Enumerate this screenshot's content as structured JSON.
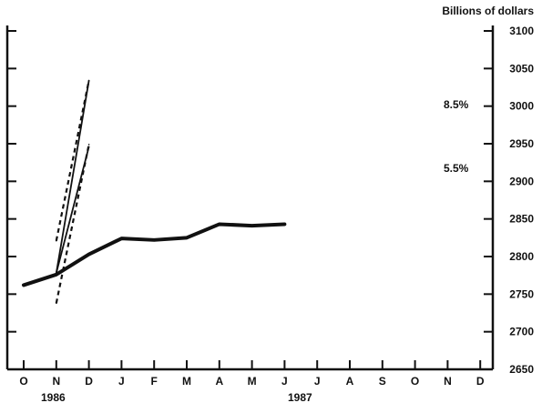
{
  "chart_data": {
    "type": "line",
    "ylabel": "Billions of dollars",
    "ylim": [
      2650,
      3100
    ],
    "yticks": [
      2650,
      2700,
      2750,
      2800,
      2850,
      2900,
      2950,
      3000,
      3050,
      3100
    ],
    "x_ticklabels": [
      "O",
      "N",
      "D",
      "J",
      "F",
      "M",
      "A",
      "M",
      "J",
      "J",
      "A",
      "S",
      "O",
      "N",
      "D"
    ],
    "year_labels": [
      "1986",
      "1987"
    ],
    "grid": false,
    "series": [
      {
        "style": "thick-solid",
        "x": [
          "O",
          "N",
          "D",
          "J",
          "F",
          "M",
          "A",
          "M",
          "J"
        ],
        "values": [
          2762,
          2776,
          2803,
          2824,
          2822,
          2825,
          2843,
          2841,
          2843
        ]
      },
      {
        "name": "8.5%",
        "style": "thin-solid",
        "x": [
          "N",
          "D"
        ],
        "values": [
          2778,
          3034
        ]
      },
      {
        "name": "5.5%",
        "style": "thin-solid",
        "x": [
          "N",
          "D"
        ],
        "values": [
          2778,
          2946
        ]
      },
      {
        "style": "dashed",
        "x": [
          "N",
          "D"
        ],
        "values": [
          2821,
          3034
        ]
      },
      {
        "style": "dashed",
        "x": [
          "N",
          "D"
        ],
        "values": [
          2738,
          2949
        ]
      }
    ],
    "annotations": [
      "8.5%",
      "5.5%"
    ]
  }
}
